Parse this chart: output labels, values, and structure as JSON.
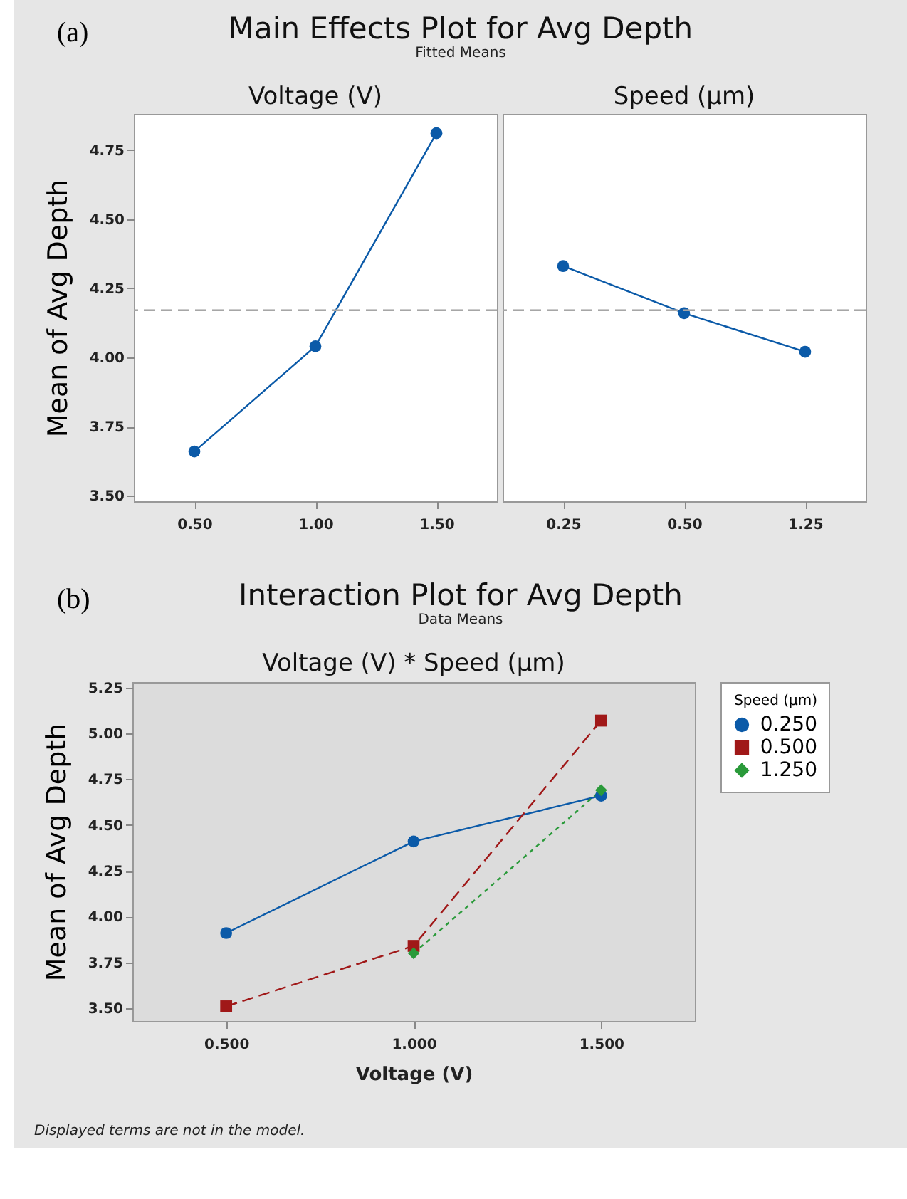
{
  "chart_data": [
    {
      "type": "line",
      "title": "Voltage (V)",
      "annotations": [
        "(a)",
        "Main Effects Plot for Avg Depth",
        "Fitted Means"
      ],
      "ylabel": "Mean of Avg Depth",
      "categories": [
        "0.50",
        "1.00",
        "1.50"
      ],
      "series": [
        {
          "color": "#0b5aa8",
          "values": [
            3.66,
            4.04,
            4.81
          ]
        }
      ],
      "ylim": [
        3.48,
        4.88
      ],
      "yticks": [
        {
          "value": 3.5,
          "label": "3.50"
        },
        {
          "value": 3.75,
          "label": "3.75"
        },
        {
          "value": 4,
          "label": "4.00"
        },
        {
          "value": 4.25,
          "label": "4.25"
        },
        {
          "value": 4.5,
          "label": "4.50"
        },
        {
          "value": 4.75,
          "label": "4.75"
        }
      ],
      "ref_lines": [
        {
          "axis": "y",
          "value": 4.17,
          "color": "#a6a6a6",
          "line_style": "dashed"
        }
      ],
      "marker": "circle",
      "legend": false,
      "grid": false
    },
    {
      "type": "line",
      "title": "Speed (µm)",
      "categories": [
        "0.25",
        "0.50",
        "1.25"
      ],
      "series": [
        {
          "color": "#0b5aa8",
          "values": [
            4.33,
            4.16,
            4.02
          ]
        }
      ],
      "ylim": [
        3.48,
        4.88
      ],
      "tick_labels": "x",
      "ref_lines": [
        {
          "axis": "y",
          "value": 4.17,
          "color": "#a6a6a6",
          "line_style": "dashed"
        }
      ],
      "marker": "circle",
      "legend": false,
      "grid": false
    },
    {
      "type": "line",
      "title": "Voltage (V) * Speed (µm)",
      "annotations": [
        "(b)",
        "Interaction Plot for Avg Depth",
        "Data Means",
        "Displayed terms are not in the model."
      ],
      "xlabel": "Voltage (V)",
      "ylabel": "Mean of Avg Depth",
      "legend_title": "Speed (µm)",
      "legend": "right",
      "grid": false,
      "categories": [
        "0.500",
        "1.000",
        "1.500"
      ],
      "series": [
        {
          "name": "0.250",
          "color": "#0b5aa8",
          "marker": "circle",
          "line_style": "solid",
          "values": [
            3.91,
            4.41,
            4.66
          ]
        },
        {
          "name": "0.500",
          "color": "#a01818",
          "marker": "square",
          "line_style": "dashed",
          "values": [
            3.51,
            3.84,
            5.07
          ]
        },
        {
          "name": "1.250",
          "color": "#2a9a3a",
          "marker": "diamond",
          "line_style": "dotted",
          "values": [
            null,
            3.8,
            4.69
          ]
        }
      ],
      "ylim": [
        3.43,
        5.28
      ],
      "yticks": [
        {
          "value": 3.5,
          "label": "3.50"
        },
        {
          "value": 3.75,
          "label": "3.75"
        },
        {
          "value": 4,
          "label": "4.00"
        },
        {
          "value": 4.25,
          "label": "4.25"
        },
        {
          "value": 4.5,
          "label": "4.50"
        },
        {
          "value": 4.75,
          "label": "4.75"
        },
        {
          "value": 5,
          "label": "5.00"
        },
        {
          "value": 5.25,
          "label": "5.25"
        }
      ]
    }
  ]
}
